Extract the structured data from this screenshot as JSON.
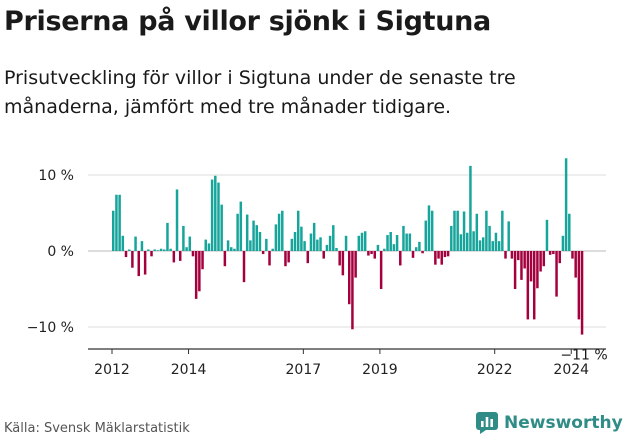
{
  "title": "Priserna på villor sjönk i Sigtuna",
  "subtitle": "Prisutveckling för villor i Sigtuna under de senaste tre månaderna, jämfört med tre månader tidigare.",
  "source": "Källa: Svensk Mäklarstatistik",
  "brand": {
    "name": "Newsworthy",
    "icon": "newsworthy-logo-icon"
  },
  "colors": {
    "positive": "#17a59b",
    "negative": "#a3003d",
    "grid": "#dddddd",
    "axis": "#333333"
  },
  "chart_data": {
    "type": "bar",
    "title": "Priserna på villor sjönk i Sigtuna",
    "xlabel": "",
    "ylabel": "",
    "ylim": [
      -13,
      14
    ],
    "yticks": [
      10,
      0,
      -10
    ],
    "ytick_labels": [
      "10 %",
      "0 %",
      "−10 %"
    ],
    "xticks": [
      {
        "x": 2012,
        "label": "2012"
      },
      {
        "x": 2014,
        "label": "2014"
      },
      {
        "x": 2017,
        "label": "2017"
      },
      {
        "x": 2019,
        "label": "2019"
      },
      {
        "x": 2022,
        "label": "2022"
      },
      {
        "x": 2024,
        "label": "2024"
      }
    ],
    "start_year": 2012,
    "months_per_bar": 1,
    "series": [
      {
        "name": "Prisutveckling",
        "values": [
          5.3,
          7.4,
          7.4,
          2.0,
          -0.8,
          0.2,
          -2.2,
          1.9,
          -3.3,
          1.3,
          -3.1,
          0.2,
          -0.7,
          0.2,
          0.1,
          0.3,
          0.2,
          3.7,
          0.3,
          -1.5,
          8.1,
          -1.3,
          3.3,
          0.5,
          1.9,
          -0.7,
          -6.3,
          -5.3,
          -2.4,
          1.5,
          1.0,
          9.4,
          9.9,
          9.0,
          6.1,
          -2.0,
          1.4,
          0.5,
          0.3,
          4.9,
          6.5,
          -4.1,
          4.8,
          1.4,
          4.0,
          3.4,
          2.5,
          -0.4,
          1.6,
          -1.9,
          0.3,
          3.5,
          4.9,
          5.3,
          -2.0,
          -1.5,
          1.6,
          2.5,
          5.3,
          3.2,
          1.3,
          -1.6,
          2.3,
          3.7,
          1.5,
          1.8,
          -1.0,
          0.8,
          2.0,
          3.4,
          0.4,
          -1.9,
          -3.2,
          2.0,
          -7.0,
          -10.3,
          -3.5,
          2.0,
          2.4,
          2.6,
          -0.6,
          -0.4,
          -1.0,
          0.8,
          -5.0,
          0.3,
          2.1,
          2.5,
          0.9,
          2.1,
          -1.9,
          3.3,
          2.3,
          2.3,
          -0.9,
          0.5,
          1.2,
          -0.3,
          4.0,
          6.0,
          5.3,
          -1.8,
          -1.0,
          -1.8,
          -0.8,
          -0.7,
          3.3,
          5.3,
          5.3,
          2.2,
          5.2,
          2.4,
          11.2,
          2.6,
          4.9,
          1.4,
          1.8,
          5.3,
          3.3,
          1.3,
          2.4,
          1.3,
          5.3,
          -1.0,
          3.9,
          -1.0,
          -5.0,
          -1.2,
          -3.8,
          -2.3,
          -9.0,
          -4.0,
          -9.0,
          -4.9,
          -2.7,
          -2.0,
          4.1,
          -0.5,
          -0.4,
          -6.0,
          -1.6,
          2.0,
          12.2,
          4.9,
          -1.0,
          -3.5,
          -9.0,
          -11.0
        ]
      }
    ],
    "annotations": [
      {
        "label": "−11 %",
        "target": "last_bar"
      }
    ]
  }
}
